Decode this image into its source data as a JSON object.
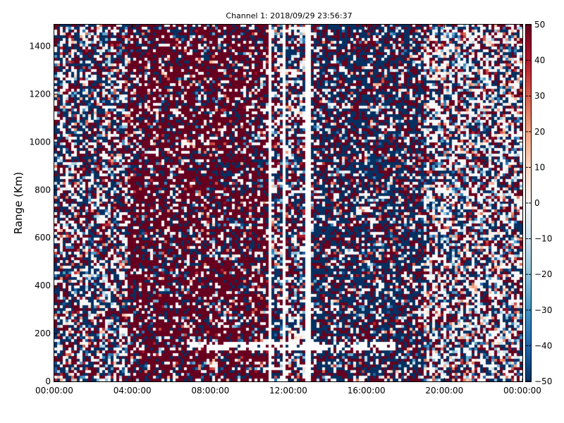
{
  "chart_data": {
    "type": "heatmap",
    "title": "Channel 1: 2018/09/29 23:56:37",
    "xlabel": "",
    "ylabel": "Range (Km)",
    "x_ticks": [
      "00:00:00",
      "04:00:00",
      "08:00:00",
      "12:00:00",
      "16:00:00",
      "20:00:00",
      "00:00:00"
    ],
    "y_ticks": [
      0,
      200,
      400,
      600,
      800,
      1000,
      1200,
      1400
    ],
    "xlim_hours": [
      0,
      24
    ],
    "ylim": [
      0,
      1490
    ],
    "colorbar": {
      "colormap": "RdBu_r",
      "low_color": "#053061",
      "mid_color": "#f7f7f7",
      "high_color": "#67001f",
      "range": [
        -50,
        50
      ],
      "ticks": [
        50,
        40,
        30,
        20,
        10,
        0,
        -10,
        -20,
        -30,
        -40,
        -50
      ]
    },
    "grid": false,
    "data_gaps_hours": [
      [
        11.0,
        11.12
      ],
      [
        11.75,
        11.88
      ],
      [
        12.9,
        13.2
      ]
    ],
    "gap_band": {
      "y_range_km": [
        130,
        160
      ],
      "x_range_hours": [
        6.8,
        17.5
      ]
    }
  }
}
